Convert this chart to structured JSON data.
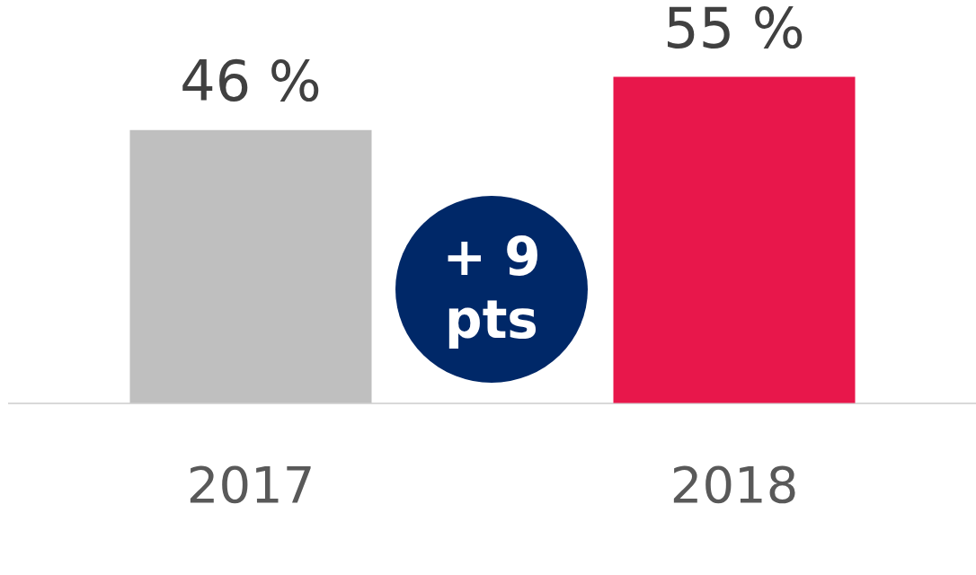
{
  "chart_data": {
    "type": "bar",
    "categories": [
      "2017",
      "2018"
    ],
    "values": [
      46,
      55
    ],
    "colors": [
      "#bfbfbf",
      "#e8174b"
    ],
    "value_labels": [
      "46 %",
      "55 %"
    ],
    "annotations": [
      "+ 9 pts"
    ],
    "grid": false,
    "legend": false,
    "tick_labels": "x"
  }
}
